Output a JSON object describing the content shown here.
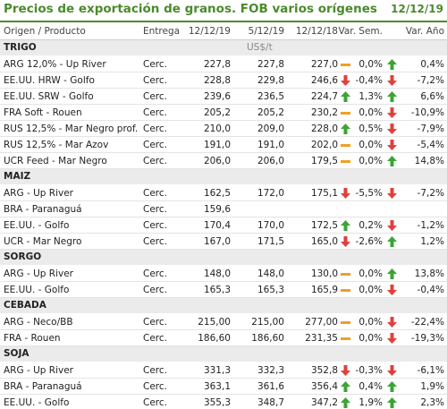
{
  "header": {
    "title": "Precios de exportación de granos. FOB varios orígenes",
    "date": "12/12/19"
  },
  "columns": [
    "Origen / Producto",
    "Entrega",
    "12/12/19",
    "5/12/19",
    "12/12/18",
    "Var. Sem.",
    "Var. Año"
  ],
  "sections": [
    {
      "name": "TRIGO",
      "unit": "US$/t",
      "rows": [
        {
          "cells": [
            "ARG 12,0% - Up River",
            "Cerc.",
            "227,8",
            "227,8",
            "227,0",
            "0,0%",
            "0,4%"
          ],
          "icons": [
            "flat",
            "up"
          ]
        },
        {
          "cells": [
            "EE.UU. HRW - Golfo",
            "Cerc.",
            "228,8",
            "229,8",
            "246,6",
            "-0,4%",
            "-7,2%"
          ],
          "icons": [
            "down",
            "down"
          ]
        },
        {
          "cells": [
            "EE.UU. SRW - Golfo",
            "Cerc.",
            "239,6",
            "236,5",
            "224,7",
            "1,3%",
            "6,6%"
          ],
          "icons": [
            "up",
            "up"
          ]
        },
        {
          "cells": [
            "FRA Soft - Rouen",
            "Cerc.",
            "205,2",
            "205,2",
            "230,2",
            "0,0%",
            "-10,9%"
          ],
          "icons": [
            "flat",
            "down"
          ]
        },
        {
          "cells": [
            "RUS 12,5% - Mar Negro prof.",
            "Cerc.",
            "210,0",
            "209,0",
            "228,0",
            "0,5%",
            "-7,9%"
          ],
          "icons": [
            "up",
            "down"
          ]
        },
        {
          "cells": [
            "RUS 12,5% - Mar Azov",
            "Cerc.",
            "191,0",
            "191,0",
            "202,0",
            "0,0%",
            "-5,4%"
          ],
          "icons": [
            "flat",
            "down"
          ]
        },
        {
          "cells": [
            "UCR Feed - Mar Negro",
            "Cerc.",
            "206,0",
            "206,0",
            "179,5",
            "0,0%",
            "14,8%"
          ],
          "icons": [
            "flat",
            "up"
          ]
        }
      ]
    },
    {
      "name": "MAIZ",
      "rows": [
        {
          "cells": [
            "ARG - Up River",
            "Cerc.",
            "162,5",
            "172,0",
            "175,1",
            "-5,5%",
            "-7,2%"
          ],
          "icons": [
            "down",
            "down"
          ]
        },
        {
          "cells": [
            "BRA - Paranaguá",
            "Cerc.",
            "159,6"
          ],
          "icons": []
        },
        {
          "cells": [
            "EE.UU. - Golfo",
            "Cerc.",
            "170,4",
            "170,0",
            "172,5",
            "0,2%",
            "-1,2%"
          ],
          "icons": [
            "up",
            "down"
          ]
        },
        {
          "cells": [
            "UCR - Mar Negro",
            "Cerc.",
            "167,0",
            "171,5",
            "165,0",
            "-2,6%",
            "1,2%"
          ],
          "icons": [
            "down",
            "up"
          ]
        }
      ]
    },
    {
      "name": "SORGO",
      "rows": [
        {
          "cells": [
            "ARG - Up River",
            "Cerc.",
            "148,0",
            "148,0",
            "130,0",
            "0,0%",
            "13,8%"
          ],
          "icons": [
            "flat",
            "up"
          ]
        },
        {
          "cells": [
            "EE.UU. - Golfo",
            "Cerc.",
            "165,3",
            "165,3",
            "165,9",
            "0,0%",
            "-0,4%"
          ],
          "icons": [
            "flat",
            "down"
          ]
        }
      ]
    },
    {
      "name": "CEBADA",
      "rows": [
        {
          "cells": [
            "ARG - Neco/BB",
            "Cerc.",
            "215,00",
            "215,00",
            "277,00",
            "0,0%",
            "-22,4%"
          ],
          "icons": [
            "flat",
            "down"
          ]
        },
        {
          "cells": [
            "FRA - Rouen",
            "Cerc.",
            "186,60",
            "186,60",
            "231,35",
            "0,0%",
            "-19,3%"
          ],
          "icons": [
            "flat",
            "down"
          ]
        }
      ]
    },
    {
      "name": "SOJA",
      "rows": [
        {
          "cells": [
            "ARG - Up River",
            "Cerc.",
            "331,3",
            "332,3",
            "352,8",
            "-0,3%",
            "-6,1%"
          ],
          "icons": [
            "down",
            "down"
          ]
        },
        {
          "cells": [
            "BRA - Paranaguá",
            "Cerc.",
            "363,1",
            "361,6",
            "356,4",
            "0,4%",
            "1,9%"
          ],
          "icons": [
            "up",
            "up"
          ]
        },
        {
          "cells": [
            "EE.UU. - Golfo",
            "Cerc.",
            "355,3",
            "348,7",
            "347,2",
            "1,9%",
            "2,3%"
          ],
          "icons": [
            "up",
            "up"
          ]
        }
      ]
    }
  ]
}
